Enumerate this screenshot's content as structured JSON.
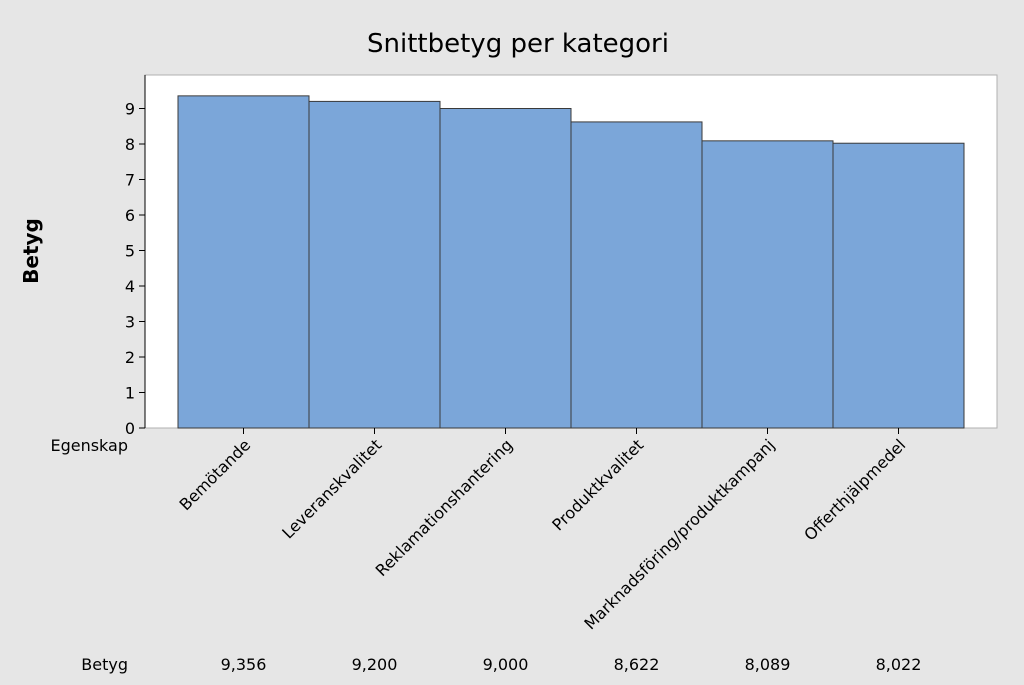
{
  "chart_data": {
    "type": "bar",
    "title": "Snittbetyg per kategori",
    "ylabel": "Betyg",
    "xlabel": "Egenskap",
    "categories": [
      "Bemötande",
      "Leveranskvalitet",
      "Reklamationshantering",
      "Produktkvalitet",
      "Marknadsföring/produktkampanj",
      "Offerthjälpmedel"
    ],
    "values": [
      9.356,
      9.2,
      9.0,
      8.622,
      8.089,
      8.022
    ],
    "value_labels": [
      "9,356",
      "9,200",
      "9,000",
      "8,622",
      "8,089",
      "8,022"
    ],
    "table_row_label": "Betyg",
    "ylim": [
      0,
      10
    ],
    "yticks": [
      0,
      1,
      2,
      3,
      4,
      5,
      6,
      7,
      8,
      9
    ],
    "grid": false,
    "legend": "none",
    "bar_color": "#7ba6d9",
    "bar_edge_color": "#3a3a3a",
    "plot_background": "#ffffff",
    "page_background": "#e6e6e6"
  }
}
